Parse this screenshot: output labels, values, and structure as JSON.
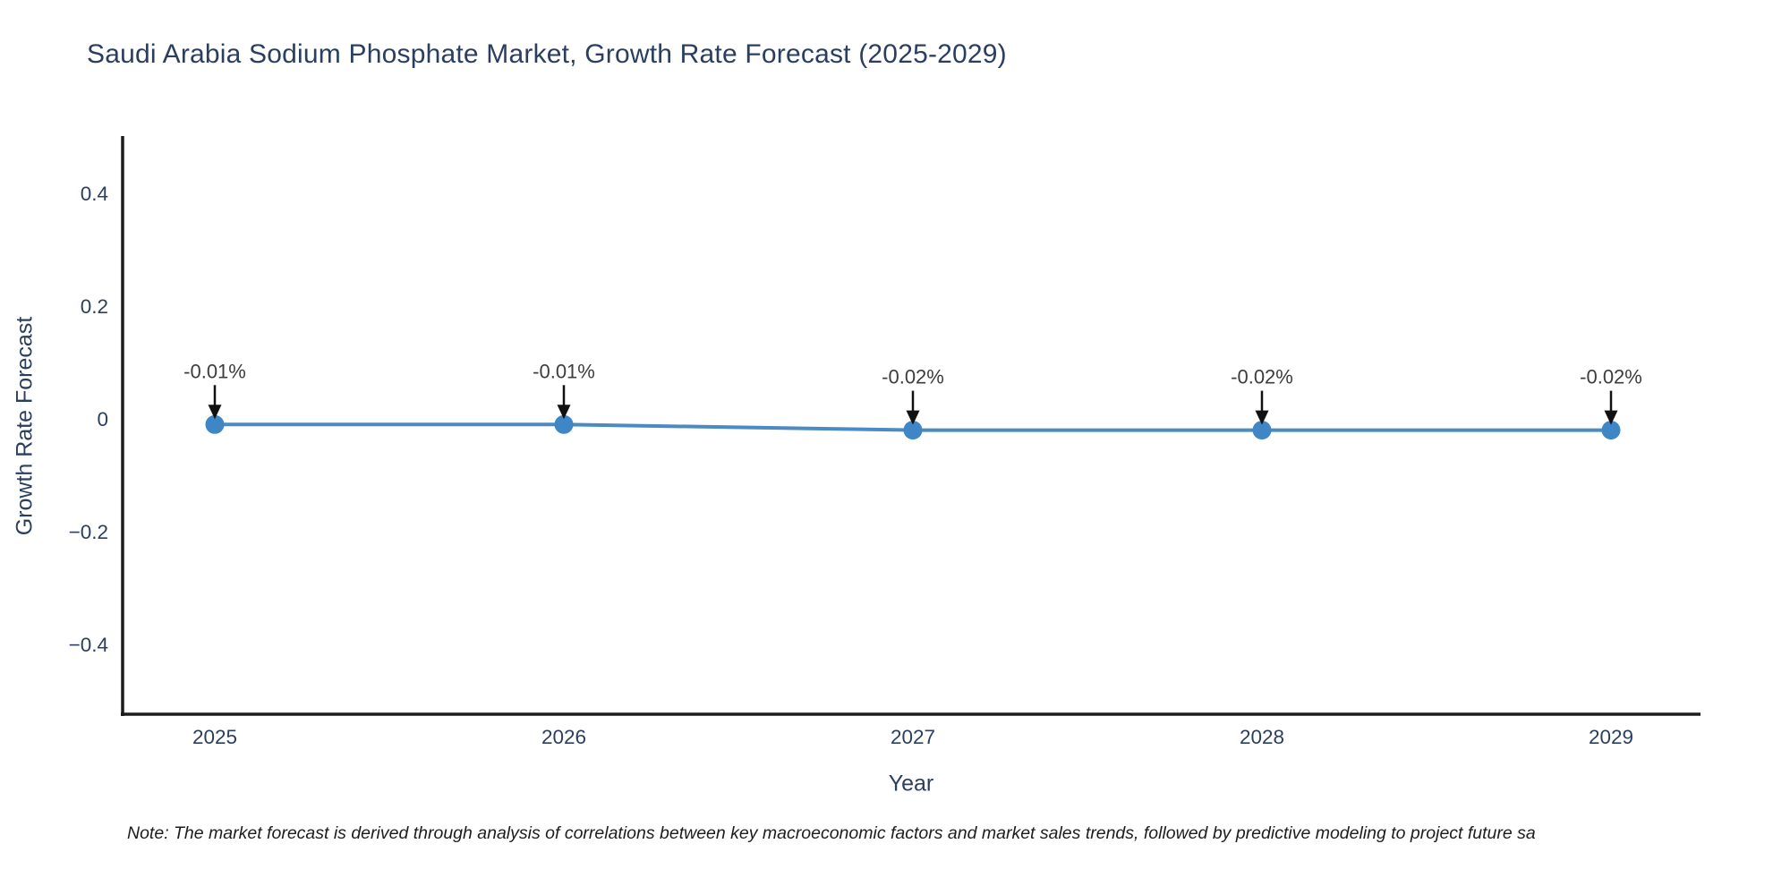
{
  "chart": {
    "title": "Saudi Arabia Sodium Phosphate Market, Growth Rate Forecast (2025-2029)",
    "xlabel": "Year",
    "ylabel": "Growth Rate Forecast",
    "note": "Note: The market forecast is derived through analysis of correlations between key macroeconomic factors and market sales trends, followed by predictive modeling to project future sa"
  },
  "chart_data": {
    "type": "line",
    "title": "Saudi Arabia Sodium Phosphate Market, Growth Rate Forecast (2025-2029)",
    "xlabel": "Year",
    "ylabel": "Growth Rate Forecast",
    "x": [
      2025,
      2026,
      2027,
      2028,
      2029
    ],
    "y": [
      -0.01,
      -0.01,
      -0.02,
      -0.02,
      -0.02
    ],
    "point_labels": [
      "-0.01%",
      "-0.01%",
      "-0.02%",
      "-0.02%",
      "-0.02%"
    ],
    "xtick_labels": [
      "2025",
      "2026",
      "2027",
      "2028",
      "2029"
    ],
    "yticks": [
      0.4,
      0.2,
      0,
      -0.2,
      -0.4
    ],
    "ytick_labels": [
      "0.4",
      "0.2",
      "0",
      "−0.2",
      "−0.4"
    ],
    "ylim": [
      -0.52,
      0.5
    ],
    "grid": false,
    "legend": "none",
    "colors": {
      "line": "#4a8bc2",
      "marker": "#3f86c6",
      "axis": "#1c1c1c",
      "tick_text": "#2a3f5f",
      "annotation_text": "#3d3d3d",
      "arrow": "#111111",
      "background": "#ffffff"
    }
  }
}
